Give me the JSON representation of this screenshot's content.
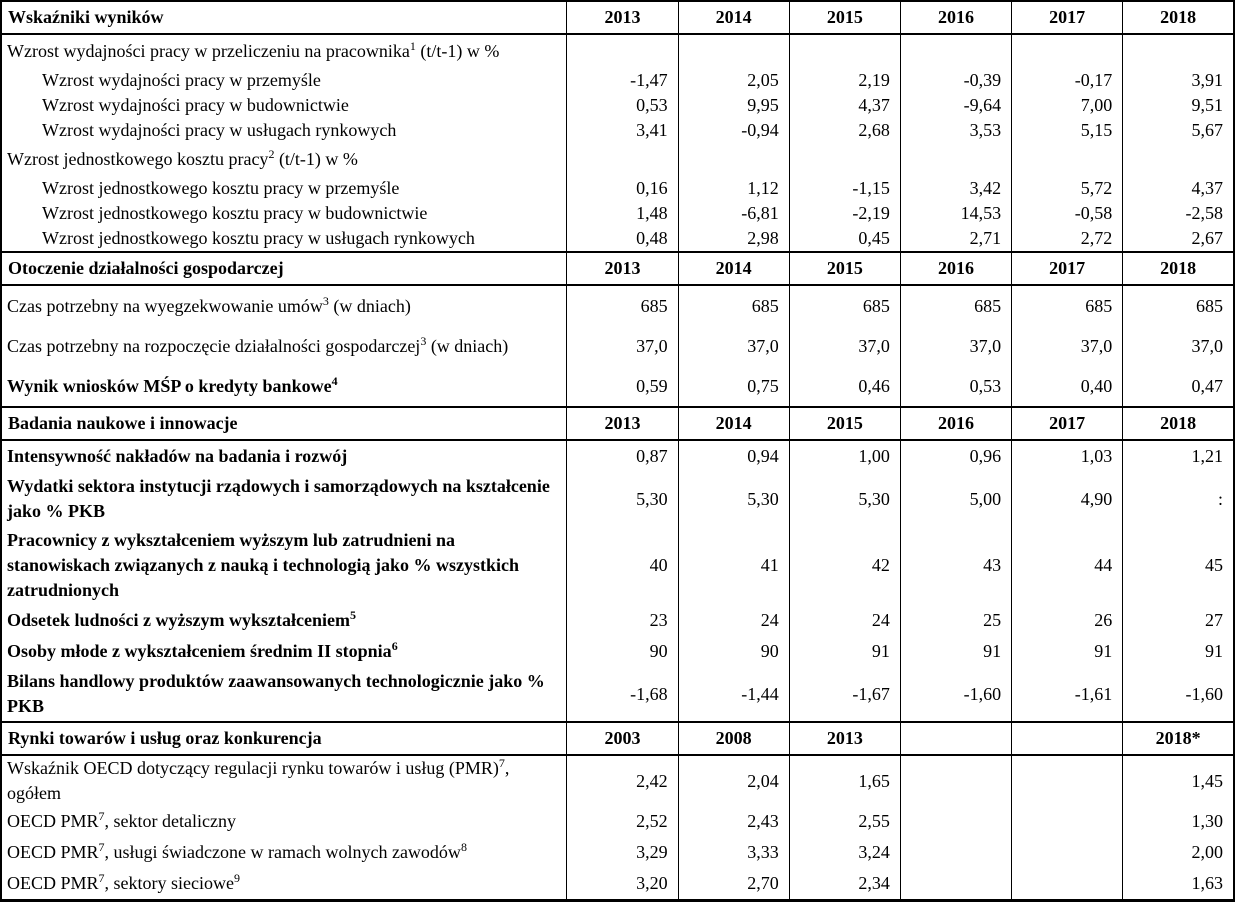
{
  "table": {
    "sections": [
      {
        "title": "Wskaźniki wyników",
        "years": [
          "2013",
          "2014",
          "2015",
          "2016",
          "2017",
          "2018"
        ],
        "rows": [
          {
            "parts": [
              {
                "text": "Wzrost wydajności pracy w przeliczeniu na pracownika"
              },
              {
                "sup": "1"
              },
              {
                "text": " (t/t-1) w %"
              }
            ],
            "indent": false,
            "bold": false,
            "values": [
              "",
              "",
              "",
              "",
              "",
              ""
            ]
          },
          {
            "parts": [
              {
                "text": "Wzrost wydajności pracy w przemyśle"
              }
            ],
            "indent": true,
            "bold": false,
            "values": [
              "-1,47",
              "2,05",
              "2,19",
              "-0,39",
              "-0,17",
              "3,91"
            ]
          },
          {
            "parts": [
              {
                "text": "Wzrost wydajności pracy w budownictwie"
              }
            ],
            "indent": true,
            "bold": false,
            "values": [
              "0,53",
              "9,95",
              "4,37",
              "-9,64",
              "7,00",
              "9,51"
            ]
          },
          {
            "parts": [
              {
                "text": "Wzrost wydajności pracy w usługach rynkowych"
              }
            ],
            "indent": true,
            "bold": false,
            "values": [
              "3,41",
              "-0,94",
              "2,68",
              "3,53",
              "5,15",
              "5,67"
            ]
          },
          {
            "parts": [
              {
                "text": "Wzrost jednostkowego kosztu pracy"
              },
              {
                "sup": "2"
              },
              {
                "text": " (t/t-1) w %"
              }
            ],
            "indent": false,
            "bold": false,
            "values": [
              "",
              "",
              "",
              "",
              "",
              ""
            ]
          },
          {
            "parts": [
              {
                "text": "Wzrost jednostkowego kosztu pracy w przemyśle"
              }
            ],
            "indent": true,
            "bold": false,
            "values": [
              "0,16",
              "1,12",
              "-1,15",
              "3,42",
              "5,72",
              "4,37"
            ]
          },
          {
            "parts": [
              {
                "text": "Wzrost jednostkowego kosztu pracy w budownictwie"
              }
            ],
            "indent": true,
            "bold": false,
            "values": [
              "1,48",
              "-6,81",
              "-2,19",
              "14,53",
              "-0,58",
              "-2,58"
            ]
          },
          {
            "parts": [
              {
                "text": "Wzrost jednostkowego kosztu pracy w usługach rynkowych"
              }
            ],
            "indent": true,
            "bold": false,
            "values": [
              "0,48",
              "2,98",
              "0,45",
              "2,71",
              "2,72",
              "2,67"
            ]
          }
        ]
      },
      {
        "title": "Otoczenie działalności gospodarczej",
        "years": [
          "2013",
          "2014",
          "2015",
          "2016",
          "2017",
          "2018"
        ],
        "rows": [
          {
            "parts": [
              {
                "text": "Czas potrzebny na wyegzekwowanie umów"
              },
              {
                "sup": "3"
              },
              {
                "text": " (w dniach)"
              }
            ],
            "indent": false,
            "bold": false,
            "values": [
              "685",
              "685",
              "685",
              "685",
              "685",
              "685"
            ]
          },
          {
            "parts": [
              {
                "text": "Czas potrzebny na rozpoczęcie działalności gospodarczej"
              },
              {
                "sup": "3"
              },
              {
                "text": " (w dniach)"
              }
            ],
            "indent": false,
            "bold": false,
            "values": [
              "37,0",
              "37,0",
              "37,0",
              "37,0",
              "37,0",
              "37,0"
            ]
          },
          {
            "parts": [
              {
                "text": "Wynik wniosków MŚP o kredyty bankowe"
              },
              {
                "sup": "4"
              }
            ],
            "indent": false,
            "bold": true,
            "values": [
              "0,59",
              "0,75",
              "0,46",
              "0,53",
              "0,40",
              "0,47"
            ]
          }
        ]
      },
      {
        "title": "Badania naukowe i innowacje",
        "years": [
          "2013",
          "2014",
          "2015",
          "2016",
          "2017",
          "2018"
        ],
        "rows": [
          {
            "parts": [
              {
                "text": "Intensywność nakładów na badania i rozwój"
              }
            ],
            "indent": false,
            "bold": true,
            "values": [
              "0,87",
              "0,94",
              "1,00",
              "0,96",
              "1,03",
              "1,21"
            ]
          },
          {
            "parts": [
              {
                "text": "Wydatki sektora instytucji rządowych i samorządowych na kształcenie jako % PKB"
              }
            ],
            "indent": false,
            "bold": true,
            "values": [
              "5,30",
              "5,30",
              "5,30",
              "5,00",
              "4,90",
              ":"
            ]
          },
          {
            "parts": [
              {
                "text": "Pracownicy z wykształceniem wyższym lub zatrudnieni na stanowiskach związanych z nauką i technologią jako % wszystkich zatrudnionych"
              }
            ],
            "indent": false,
            "bold": true,
            "values": [
              "40",
              "41",
              "42",
              "43",
              "44",
              "45"
            ]
          },
          {
            "parts": [
              {
                "text": "Odsetek ludności z wyższym wykształceniem"
              },
              {
                "sup": "5"
              }
            ],
            "indent": false,
            "bold": true,
            "values": [
              "23",
              "24",
              "24",
              "25",
              "26",
              "27"
            ]
          },
          {
            "parts": [
              {
                "text": "Osoby młode z wykształceniem średnim II stopnia"
              },
              {
                "sup": "6"
              }
            ],
            "indent": false,
            "bold": true,
            "values": [
              "90",
              "90",
              "91",
              "91",
              "91",
              "91"
            ]
          },
          {
            "parts": [
              {
                "text": "Bilans handlowy produktów zaawansowanych technologicznie jako % PKB"
              }
            ],
            "indent": false,
            "bold": true,
            "values": [
              "-1,68",
              "-1,44",
              "-1,67",
              "-1,60",
              "-1,61",
              "-1,60"
            ]
          }
        ]
      },
      {
        "title": "Rynki towarów i usług oraz konkurencja",
        "years": [
          "2003",
          "2008",
          "2013",
          "",
          "",
          "2018*"
        ],
        "rows": [
          {
            "parts": [
              {
                "text": "Wskaźnik OECD dotyczący regulacji rynku towarów i usług (PMR)"
              },
              {
                "sup": "7"
              },
              {
                "text": ", ogółem"
              }
            ],
            "indent": false,
            "bold": false,
            "values": [
              "2,42",
              "2,04",
              "1,65",
              "",
              "",
              "1,45"
            ]
          },
          {
            "parts": [
              {
                "text": "OECD PMR"
              },
              {
                "sup": "7"
              },
              {
                "text": ", sektor detaliczny"
              }
            ],
            "indent": false,
            "bold": false,
            "values": [
              "2,52",
              "2,43",
              "2,55",
              "",
              "",
              "1,30"
            ]
          },
          {
            "parts": [
              {
                "text": "OECD PMR"
              },
              {
                "sup": "7"
              },
              {
                "text": ", usługi świadczone w ramach wolnych zawodów"
              },
              {
                "sup": "8"
              }
            ],
            "indent": false,
            "bold": false,
            "values": [
              "3,29",
              "3,33",
              "3,24",
              "",
              "",
              "2,00"
            ]
          },
          {
            "parts": [
              {
                "text": "OECD PMR"
              },
              {
                "sup": "7"
              },
              {
                "text": ", sektory sieciowe"
              },
              {
                "sup": "9"
              }
            ],
            "indent": false,
            "bold": false,
            "values": [
              "3,20",
              "2,70",
              "2,34",
              "",
              "",
              "1,63"
            ]
          }
        ]
      }
    ]
  }
}
